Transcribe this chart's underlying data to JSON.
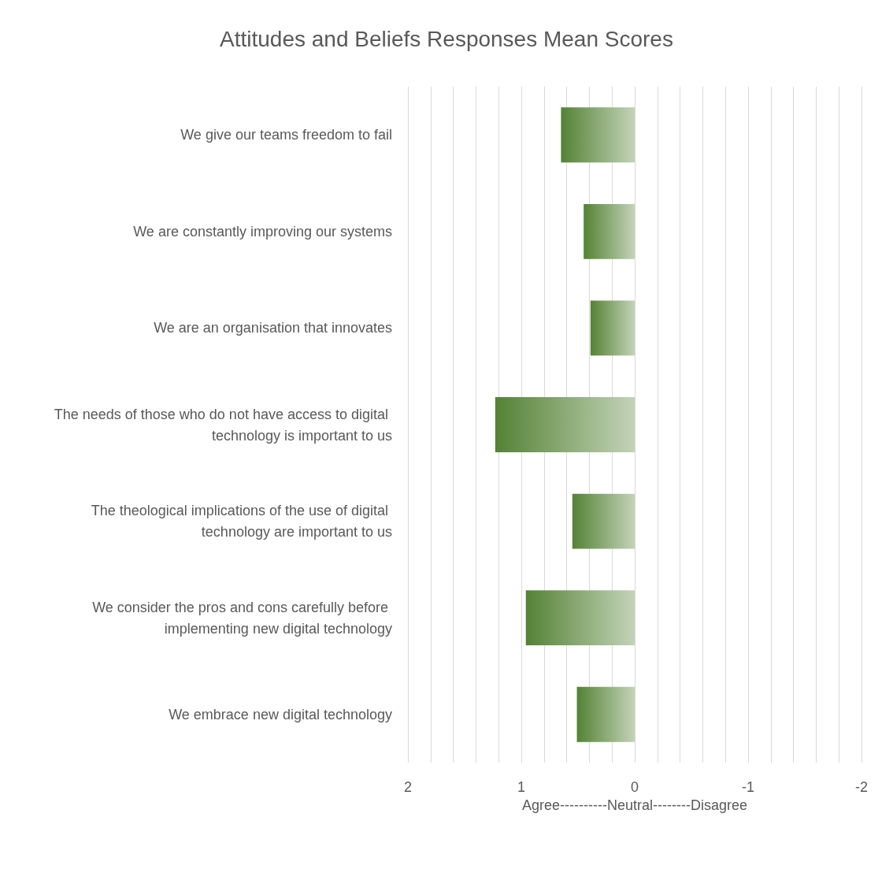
{
  "chart_data": {
    "type": "bar",
    "orientation": "horizontal",
    "title": "Attitudes and Beliefs Responses Mean Scores",
    "categories": [
      "We give our teams freedom to fail",
      "We are constantly improving our systems",
      "We are an organisation that innovates",
      "The needs of those who do not have access to digital technology is important to us",
      "The theological implications of the use of digital technology are important to us",
      "We consider the pros and cons carefully before implementing new digital technology",
      "We embrace new digital technology"
    ],
    "values": [
      0.65,
      0.45,
      0.39,
      1.23,
      0.55,
      0.96,
      0.51
    ],
    "color": "#548235",
    "xlabel": "Agree----------Neutral--------Disagree",
    "xlim": [
      2,
      -2
    ],
    "xticks": [
      2,
      {
        "value": 1.8,
        "label": null
      },
      {
        "value": 1.6,
        "label": null
      },
      {
        "value": 1.4,
        "label": null
      },
      {
        "value": 1.2,
        "label": null
      },
      1,
      {
        "value": 0.8,
        "label": null
      },
      {
        "value": 0.6,
        "label": null
      },
      {
        "value": 0.4,
        "label": null
      },
      {
        "value": 0.2,
        "label": null
      },
      0,
      {
        "value": -0.2,
        "label": null
      },
      {
        "value": -0.4,
        "label": null
      },
      {
        "value": -0.6,
        "label": null
      },
      {
        "value": -0.8,
        "label": null
      },
      -1,
      {
        "value": -1.2,
        "label": null
      },
      {
        "value": -1.4,
        "label": null
      },
      {
        "value": -1.6,
        "label": null
      },
      {
        "value": -1.8,
        "label": null
      },
      -2
    ],
    "grid": "x"
  }
}
